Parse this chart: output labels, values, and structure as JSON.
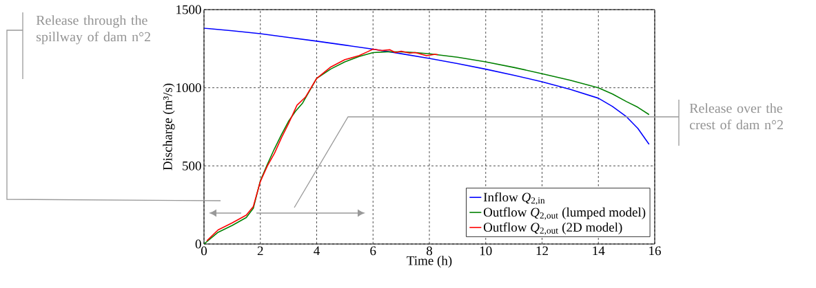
{
  "chart_data": {
    "type": "line",
    "xlabel": "Time (h)",
    "ylabel": "Discharge (m³/s)",
    "xlim": [
      0,
      16
    ],
    "ylim": [
      0,
      1500
    ],
    "xticks": [
      0,
      2,
      4,
      6,
      8,
      10,
      12,
      14,
      16
    ],
    "yticks": [
      0,
      500,
      1000,
      1500
    ],
    "grid": true,
    "legend": "bottom right",
    "line_style": "solid",
    "marker": "none",
    "series": [
      {
        "name": "Inflow *Q*$_{2,in}$",
        "color": "#0000ff",
        "x": [
          0,
          1,
          2,
          3,
          4,
          5,
          6,
          7,
          8,
          9,
          10,
          11,
          12,
          13,
          14,
          14.5,
          15,
          15.4,
          15.8
        ],
        "values": [
          1381,
          1365,
          1346,
          1322,
          1298,
          1273,
          1247,
          1218,
          1188,
          1155,
          1119,
          1080,
          1038,
          990,
          933,
          880,
          814,
          740,
          638
        ]
      },
      {
        "name": "Outflow *Q*$_{2,out}$ (lumped model)",
        "color": "#008000",
        "x": [
          0,
          0.5,
          1,
          1.5,
          1.75,
          2,
          2.25,
          2.5,
          2.75,
          3,
          3.25,
          3.5,
          4,
          4.5,
          5,
          5.5,
          6,
          6.5,
          7,
          7.5,
          8,
          9,
          10,
          11,
          12,
          13,
          14,
          14.5,
          15,
          15.4,
          15.8
        ],
        "values": [
          0,
          75,
          119,
          169,
          229,
          405,
          510,
          609,
          700,
          785,
          850,
          902,
          1060,
          1120,
          1166,
          1200,
          1225,
          1230,
          1230,
          1225,
          1217,
          1195,
          1166,
          1130,
          1090,
          1048,
          1000,
          960,
          911,
          875,
          828
        ]
      },
      {
        "name": "Outflow *Q*$_{2,out}$ (2D model)",
        "color": "#ff0000",
        "x": [
          0.1,
          0.5,
          1,
          1.5,
          1.75,
          2,
          2.25,
          2.5,
          2.75,
          3,
          3.3,
          3.6,
          4,
          4.5,
          5,
          5.5,
          5.8,
          6,
          6.3,
          6.6,
          6.8,
          7,
          7.3,
          7.5,
          7.9,
          8.2,
          8.3
        ],
        "values": [
          20,
          90,
          135,
          185,
          240,
          400,
          500,
          580,
          680,
          770,
          888,
          940,
          1060,
          1133,
          1180,
          1205,
          1230,
          1247,
          1238,
          1243,
          1225,
          1234,
          1222,
          1225,
          1205,
          1214,
          1212
        ]
      }
    ],
    "annotations": [
      "Release through the spillway of dam n°2",
      "Release over the crest of dam n°2"
    ]
  }
}
